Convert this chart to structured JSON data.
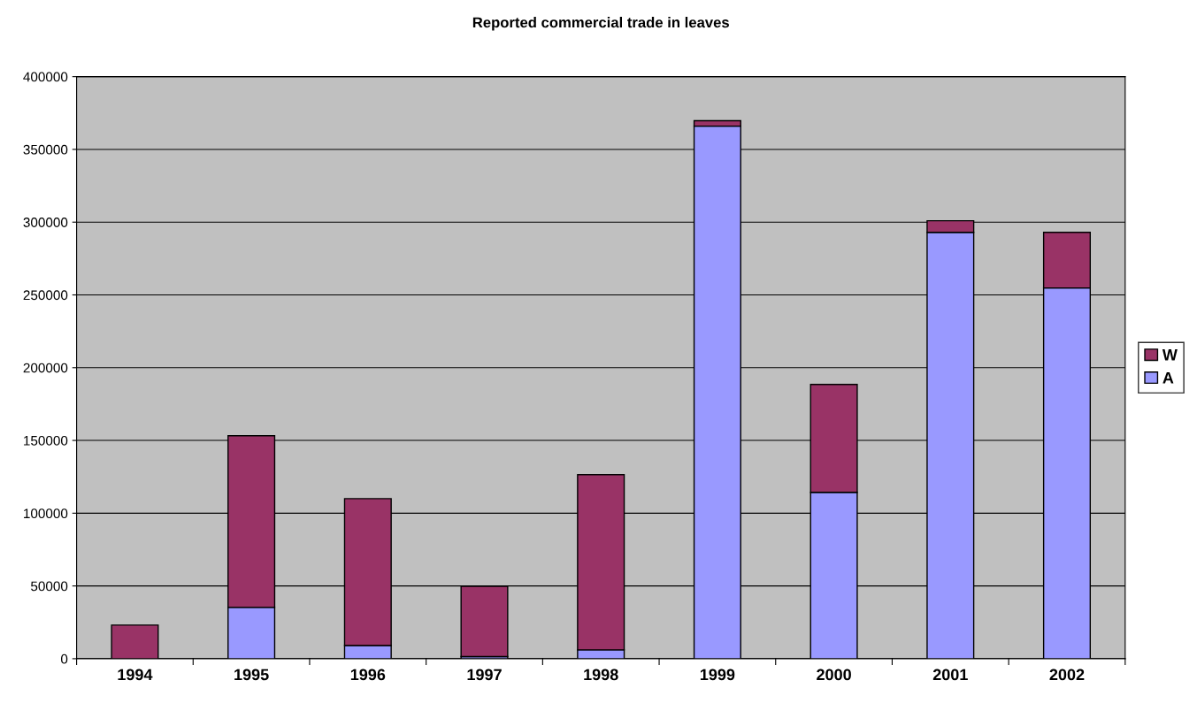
{
  "chart_data": {
    "type": "bar",
    "title": "Reported commercial trade in leaves",
    "stacked": true,
    "categories": [
      "1994",
      "1995",
      "1996",
      "1997",
      "1998",
      "1999",
      "2000",
      "2001",
      "2002"
    ],
    "series": [
      {
        "name": "A",
        "color": "#9999ff",
        "values": [
          0,
          35300,
          9100,
          1500,
          6100,
          366000,
          114300,
          293000,
          254800
        ]
      },
      {
        "name": "W",
        "color": "#993366",
        "values": [
          23100,
          117900,
          100900,
          48300,
          120400,
          3700,
          74200,
          8000,
          38200
        ]
      }
    ],
    "ylim": [
      0,
      400000
    ],
    "yticks": [
      0,
      50000,
      100000,
      150000,
      200000,
      250000,
      300000,
      350000,
      400000
    ],
    "grid": "y",
    "legend": "right"
  }
}
